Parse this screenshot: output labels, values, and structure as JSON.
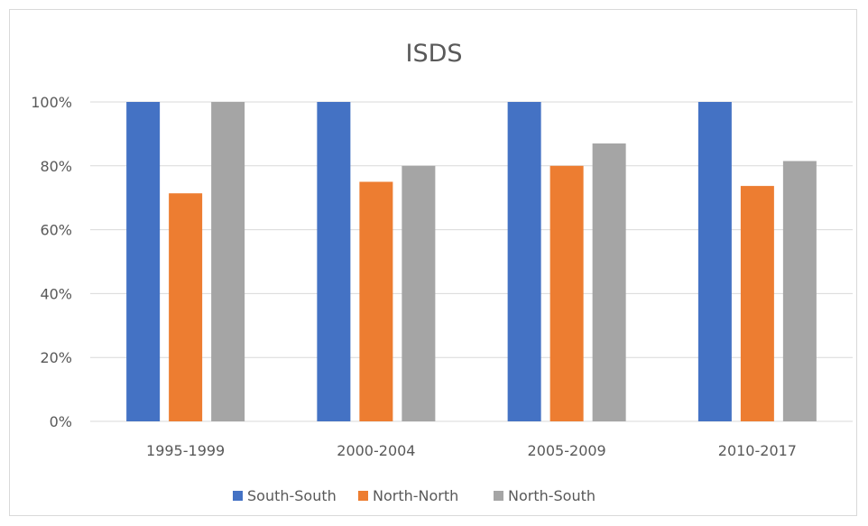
{
  "chart_data": {
    "type": "bar",
    "title": "ISDS",
    "xlabel": "",
    "ylabel": "",
    "categories": [
      "1995-1999",
      "2000-2004",
      "2005-2009",
      "2010-2017"
    ],
    "series": [
      {
        "name": "South-South",
        "color": "#4472C4",
        "values": [
          100,
          100,
          100,
          100
        ]
      },
      {
        "name": "North-North",
        "color": "#ED7D31",
        "values": [
          71.4,
          75,
          80,
          73.7
        ]
      },
      {
        "name": "North-South",
        "color": "#A5A5A5",
        "values": [
          100,
          80,
          87,
          81.5
        ]
      }
    ],
    "ylim": [
      0,
      100
    ],
    "yticks": [
      0,
      20,
      40,
      60,
      80,
      100
    ],
    "ytick_labels": [
      "0%",
      "20%",
      "40%",
      "60%",
      "80%",
      "100%"
    ],
    "grid": true,
    "legend_position": "bottom"
  }
}
